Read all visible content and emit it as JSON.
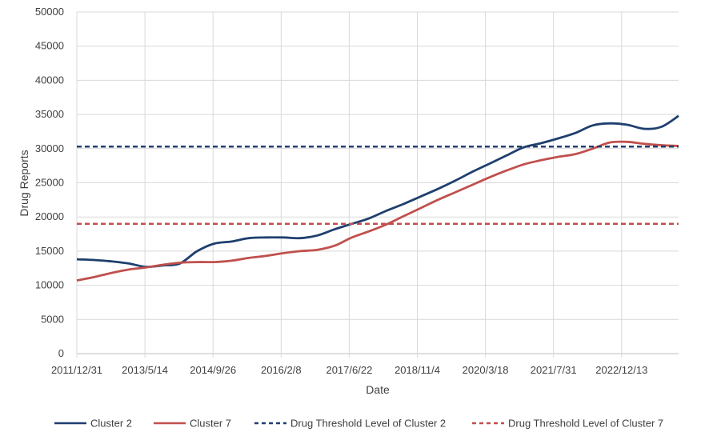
{
  "chart_data": {
    "type": "line",
    "title": "",
    "xlabel": "Date",
    "ylabel": "Drug Reports",
    "ylim": [
      0,
      50000
    ],
    "yticks": [
      0,
      5000,
      10000,
      15000,
      20000,
      25000,
      30000,
      35000,
      40000,
      45000,
      50000
    ],
    "xtick_labels": [
      "2011/12/31",
      "2013/5/14",
      "2014/9/26",
      "2016/2/8",
      "2017/6/22",
      "2018/11/4",
      "2020/3/18",
      "2021/7/31",
      "2022/12/13"
    ],
    "grid": true,
    "legend_position": "bottom",
    "series": [
      {
        "name": "Cluster 2",
        "style": "solid",
        "color": "#1F3F6E",
        "values": [
          13800,
          13700,
          13500,
          13200,
          12700,
          12900,
          13200,
          15000,
          16100,
          16400,
          16900,
          17000,
          17000,
          16900,
          17300,
          18200,
          19000,
          19800,
          20900,
          21900,
          23000,
          24100,
          25300,
          26600,
          27800,
          29000,
          30200,
          30800,
          31500,
          32300,
          33400,
          33700,
          33500,
          32900,
          33200,
          34800
        ]
      },
      {
        "name": "Cluster 7",
        "style": "solid",
        "color": "#C0504D",
        "values": [
          10700,
          11200,
          11800,
          12300,
          12600,
          13000,
          13300,
          13400,
          13400,
          13600,
          14000,
          14300,
          14700,
          15000,
          15200,
          15800,
          17000,
          17900,
          18900,
          20100,
          21300,
          22500,
          23600,
          24700,
          25800,
          26800,
          27700,
          28300,
          28800,
          29200,
          30000,
          30900,
          31000,
          30700,
          30500,
          30400
        ]
      },
      {
        "name": "Drug Threshold Level of  Cluster 2",
        "style": "dashed",
        "color": "#1F3F6E",
        "values": [
          30300
        ]
      },
      {
        "name": "Drug Threshold Level of  Cluster 7",
        "style": "dashed",
        "color": "#C0504D",
        "values": [
          19000
        ]
      }
    ]
  }
}
